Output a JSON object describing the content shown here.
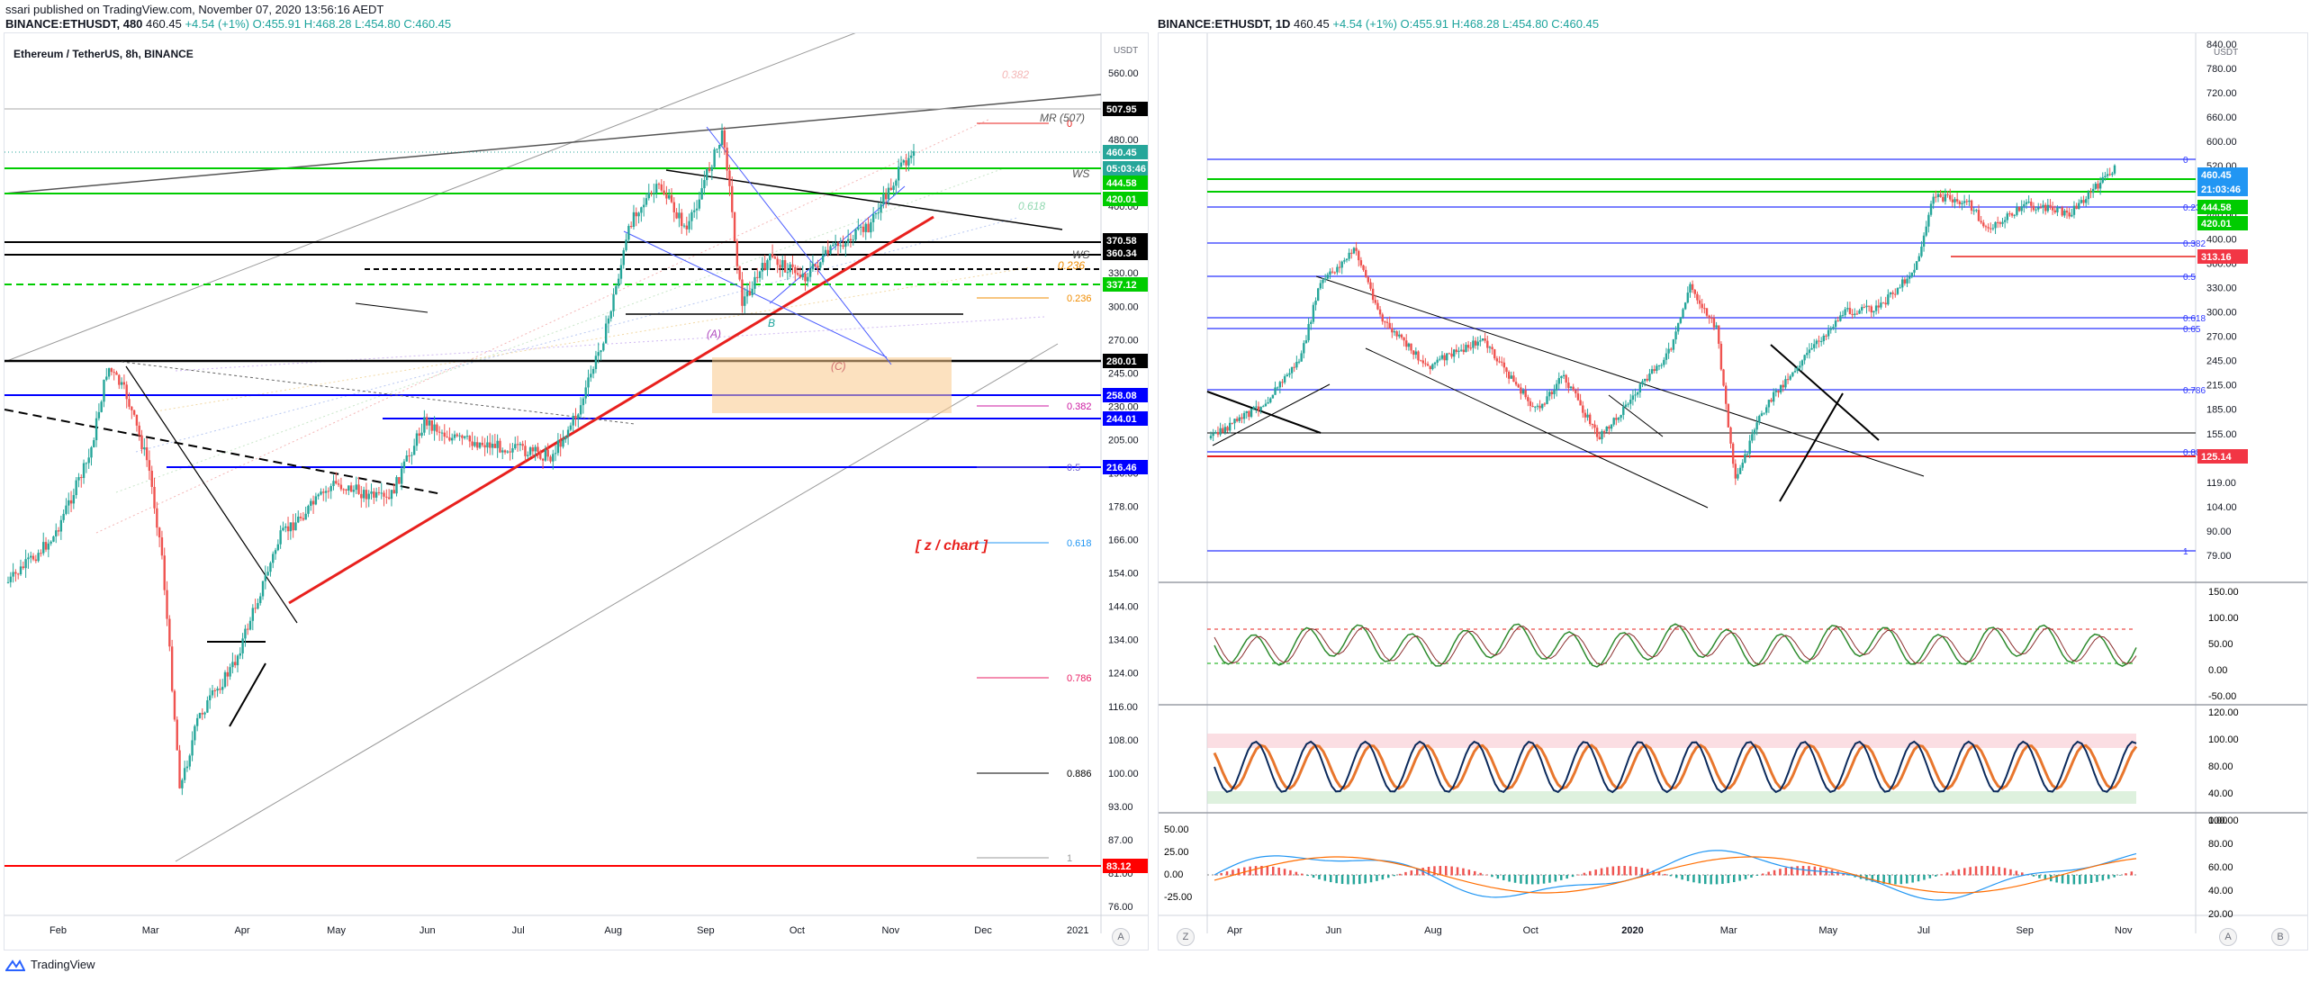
{
  "header": {
    "publisher": "ssari published on TradingView.com, November 07, 2020 13:56:16 AEDT",
    "left_symbol_line": "BINANCE:ETHUSDT, 480",
    "right_symbol_line": "BINANCE:ETHUSDT, 1D",
    "quote": {
      "last": "460.45",
      "change": "+4.54 (+1%)",
      "o": "O:455.91",
      "h": "H:468.28",
      "l": "L:454.80",
      "c": "C:460.45"
    }
  },
  "footer": {
    "brand": "TradingView"
  },
  "left_chart": {
    "pane_title": "Ethereum / TetherUS, 8h, BINANCE",
    "axis_unit": "USDT",
    "annotation": "[ z / chart ]",
    "corner_button": "A",
    "price_ticks": [
      "560.00",
      "520.00",
      "480.00",
      "440.00",
      "400.00",
      "360.00",
      "330.00",
      "300.00",
      "270.00",
      "245.00",
      "230.00",
      "205.00",
      "190.00",
      "178.00",
      "166.00",
      "154.00",
      "144.00",
      "134.00",
      "124.00",
      "116.00",
      "108.00",
      "100.00",
      "93.00",
      "87.00",
      "81.00",
      "76.00"
    ],
    "time_ticks": [
      "Feb",
      "Mar",
      "Apr",
      "May",
      "Jun",
      "Jul",
      "Aug",
      "Sep",
      "Oct",
      "Nov",
      "Dec",
      "2021"
    ],
    "price_labels": [
      {
        "text": "507.95",
        "bg": "#000000"
      },
      {
        "text": "460.45",
        "bg": "#26a69a"
      },
      {
        "text": "05:03:46",
        "bg": "#26a69a"
      },
      {
        "text": "444.58",
        "bg": "#00cc00"
      },
      {
        "text": "420.01",
        "bg": "#00cc00"
      },
      {
        "text": "370.58",
        "bg": "#000000"
      },
      {
        "text": "360.34",
        "bg": "#000000"
      },
      {
        "text": "337.12",
        "bg": "#00cc00"
      },
      {
        "text": "280.01",
        "bg": "#000000"
      },
      {
        "text": "258.08",
        "bg": "#0000ff"
      },
      {
        "text": "244.01",
        "bg": "#0000ff"
      },
      {
        "text": "216.46",
        "bg": "#0000ff"
      },
      {
        "text": "83.12",
        "bg": "#ff0000"
      }
    ],
    "fib_labels": [
      "0",
      "0.236",
      "0.382",
      "0.5",
      "0.618",
      "0.786",
      "0.886",
      "1"
    ],
    "marks": [
      "WS",
      "WS",
      "MR (507)",
      "(A)",
      "(C)",
      "B",
      "0.236",
      "0.618",
      "0.382"
    ]
  },
  "right_chart": {
    "axis_unit": "USDT",
    "corner_buttons": [
      "Z",
      "A",
      "B"
    ],
    "price_ticks": [
      "840.00",
      "780.00",
      "720.00",
      "660.00",
      "600.00",
      "520.00",
      "480.00",
      "440.00",
      "400.00",
      "360.00",
      "330.00",
      "300.00",
      "270.00",
      "245.00",
      "215.00",
      "185.00",
      "155.00",
      "135.00",
      "119.00",
      "104.00",
      "90.00",
      "79.00"
    ],
    "time_ticks": [
      "Apr",
      "Jun",
      "Aug",
      "Oct",
      "2020",
      "Mar",
      "May",
      "Jul",
      "Sep",
      "Nov"
    ],
    "price_labels": [
      {
        "text": "460.45",
        "bg": "#2196f3"
      },
      {
        "text": "21:03:46",
        "bg": "#2196f3"
      },
      {
        "text": "444.58",
        "bg": "#00cc00"
      },
      {
        "text": "420.01",
        "bg": "#00cc00"
      },
      {
        "text": "313.16",
        "bg": "#f23645"
      },
      {
        "text": "125.14",
        "bg": "#f23645"
      }
    ],
    "fib_labels": [
      "0",
      "0.236",
      "0.382",
      "0.5",
      "0.618",
      "0.65",
      "0.786",
      "0.886",
      "1"
    ],
    "osc1_ticks": [
      "150.00",
      "100.00",
      "50.00",
      "0.00",
      "-50.00"
    ],
    "osc2_ticks": [
      "120.00",
      "100.00",
      "80.00",
      "40.00",
      "0.00"
    ],
    "osc3_left_ticks": [
      "50.00",
      "25.00",
      "0.00",
      "-25.00"
    ],
    "osc3_right_ticks": [
      "100.00",
      "80.00",
      "60.00",
      "40.00",
      "20.00"
    ]
  }
}
